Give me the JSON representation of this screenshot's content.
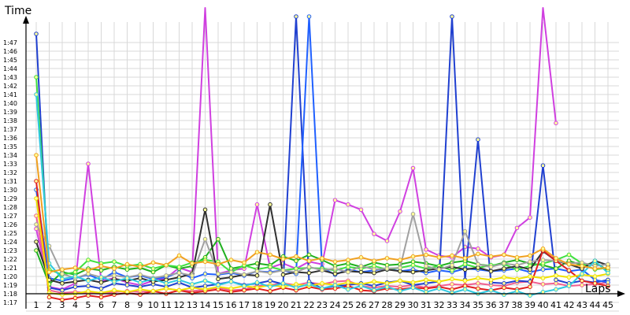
{
  "chart_data": {
    "type": "line",
    "ylabel": "Time",
    "xlabel": "Laps",
    "grid": true,
    "legend": "none",
    "ylim_seconds": [
      76,
      108
    ],
    "y_ticks": [
      "1:17",
      "1:18",
      "1:19",
      "1:20",
      "1:21",
      "1:22",
      "1:23",
      "1:24",
      "1:25",
      "1:26",
      "1:27",
      "1:28",
      "1:29",
      "1:30",
      "1:31",
      "1:32",
      "1:33",
      "1:34",
      "1:35",
      "1:36",
      "1:37",
      "1:38",
      "1:39",
      "1:40",
      "1:41",
      "1:42",
      "1:43",
      "1:44",
      "1:45",
      "1:46",
      "1:47"
    ],
    "x_ticks": [
      "1",
      "2",
      "3",
      "4",
      "5",
      "6",
      "7",
      "8",
      "9",
      "10",
      "11",
      "12",
      "13",
      "14",
      "15",
      "16",
      "17",
      "18",
      "19",
      "20",
      "21",
      "22",
      "23",
      "24",
      "25",
      "26",
      "27",
      "28",
      "29",
      "30",
      "31",
      "32",
      "33",
      "34",
      "35",
      "36",
      "37",
      "38",
      "39",
      "40",
      "41",
      "42",
      "43",
      "44",
      "45"
    ],
    "series": [
      {
        "color": "#d040e0",
        "values": [
          85.5,
          78.8,
          78.5,
          79.2,
          93,
          79.5,
          79.8,
          79.3,
          79,
          79.5,
          79.8,
          81,
          80.5,
          120,
          80.3,
          80.7,
          80.9,
          88.3,
          81,
          81.5,
          80.9,
          81.7,
          81.4,
          88.8,
          88.3,
          87.7,
          84.9,
          84.1,
          87.5,
          92.5,
          83.1,
          82.4,
          82.2,
          83.4,
          83.2,
          82.2,
          82.5,
          85.6,
          86.8,
          120,
          97.7
        ]
      },
      {
        "color": "#f06090",
        "values": [
          87,
          78.4,
          78.1,
          78.2,
          78.1,
          78,
          78.2,
          78.3,
          78.2,
          78.3,
          78.6,
          78.4,
          78.3,
          78.5,
          78.7,
          78.4,
          78.5,
          78.9,
          79,
          79.2,
          79,
          79.3,
          79.1,
          79.4,
          79.5,
          78.9,
          78.7,
          78.9,
          78.8,
          79,
          78.7,
          78.9,
          79.1,
          79,
          79.2,
          79,
          78.9,
          79.3,
          79.4,
          79.1,
          79.2,
          78.9,
          79,
          79.1,
          79.3
        ]
      },
      {
        "color": "#2040d0",
        "values": [
          108,
          78.7,
          78.4,
          78.8,
          78.9,
          78.6,
          79.2,
          79,
          78.8,
          79.1,
          78.8,
          79.3,
          78.7,
          78.9,
          79.1,
          79.4,
          79,
          79.2,
          79.5,
          79.1,
          110,
          79.4,
          78.6,
          78.9,
          79,
          79.2,
          78.9,
          79.3,
          79.5,
          79,
          79.2,
          79.4,
          110,
          79.6,
          95.8,
          79.3,
          79.2,
          79.5,
          79.4,
          92.8,
          79.6,
          79.2,
          79.5,
          79.3,
          79.6
        ]
      },
      {
        "color": "#2060ff",
        "values": [
          90,
          79.8,
          79.5,
          79.8,
          80.2,
          79.6,
          80.5,
          79.9,
          80.1,
          79.7,
          79.9,
          80.5,
          79.8,
          80.3,
          80.2,
          80.4,
          80.1,
          80.6,
          80.5,
          80.7,
          80.3,
          110,
          81,
          80.2,
          80.8,
          80.5,
          80.7,
          80.9,
          80.6,
          80.8,
          80.4,
          80.7,
          80.5,
          80.9,
          80.8,
          80.6,
          80.7,
          80.9,
          80.5,
          80.8,
          80.9,
          80.6,
          80.8,
          79.6,
          79.3
        ]
      },
      {
        "color": "#20b020",
        "values": [
          83,
          79.1,
          80.5,
          80.2,
          80.9,
          80.7,
          81.1,
          80.8,
          81,
          80.5,
          81.3,
          80.9,
          81.2,
          82.2,
          84.3,
          80.9,
          81.2,
          81.5,
          81.3,
          82.3,
          81.8,
          82.5,
          81.9,
          81.2,
          81.5,
          81.1,
          81.6,
          81.3,
          81.4,
          81.7,
          81.5,
          81.2,
          81.6,
          81.8,
          81.4,
          81.2,
          81.6,
          81.9,
          81.5,
          81.3,
          80.9,
          81.8,
          81.3,
          81.6,
          80.7
        ]
      },
      {
        "color": "#40e040",
        "values": [
          103,
          80.8,
          80.2,
          80.5,
          81.9,
          81.5,
          81.7,
          81.2,
          81.4,
          80.9,
          81.3,
          81.1,
          81.6,
          81.9,
          81.7,
          80.5,
          81.3,
          80.8,
          81.1,
          80.7,
          80.9,
          81,
          80.9,
          80.7,
          81.1,
          80.9,
          81.2,
          80.8,
          81,
          81.3,
          80.9,
          81.2,
          80.7,
          81.4,
          81,
          81.3,
          81.4,
          80.8,
          81.2,
          81.5,
          81.9,
          82.5,
          81.5,
          80.8,
          81
        ]
      },
      {
        "color": "#303030",
        "values": [
          84,
          79.6,
          79.2,
          79.4,
          79.6,
          79.3,
          79.7,
          79.5,
          79.8,
          79.4,
          79.6,
          79.9,
          80.3,
          87.7,
          79.7,
          79.9,
          80.2,
          80.1,
          88.3,
          80.2,
          80.5,
          80.4,
          80.7,
          80.3,
          80.6,
          80.5,
          80.4,
          80.8,
          80.6,
          80.5,
          80.7,
          80.9,
          81.1,
          80.8,
          81,
          80.6,
          80.9,
          81.2,
          80.8,
          82.9,
          81.8,
          81.4,
          80.9,
          81.8,
          81.3
        ]
      },
      {
        "color": "#a0a0a0",
        "values": [
          86,
          83.5,
          80.3,
          79.8,
          80.3,
          79.9,
          80.1,
          79.9,
          80.2,
          79.8,
          80.1,
          80.4,
          80.1,
          84.3,
          80.3,
          80.5,
          80.2,
          80.6,
          80.4,
          80.7,
          80.5,
          81.1,
          80.7,
          80.9,
          80.5,
          81.2,
          80.8,
          80.9,
          81,
          87.2,
          81.2,
          80.8,
          81.3,
          85.2,
          81.4,
          81.1,
          81.5,
          81.3,
          81.7,
          81.9,
          81.8,
          81.5,
          81.6,
          81.2,
          81.4
        ]
      },
      {
        "color": "#e02020",
        "values": [
          91,
          77.6,
          77.3,
          77.5,
          77.8,
          77.6,
          77.9,
          78.1,
          77.9,
          78.3,
          78,
          78.4,
          78.1,
          78.3,
          78.5,
          78.2,
          78.4,
          78.6,
          78.3,
          78.7,
          78.4,
          78.8,
          78.5,
          78.6,
          78.9,
          78.4,
          78.3,
          78.6,
          78.5,
          78.7,
          78.6,
          78.8,
          78.5,
          78.9,
          78.6,
          78.4,
          78.7,
          78.5,
          78.8,
          83,
          81.8,
          80.7,
          79.5,
          79.2,
          78.9
        ]
      },
      {
        "color": "#f0e000",
        "values": [
          89,
          78.1,
          77.9,
          78,
          78.3,
          78.1,
          78.4,
          78.2,
          78.5,
          78.3,
          78.6,
          78.4,
          78.7,
          78.5,
          78.8,
          78.6,
          78.9,
          78.7,
          79,
          78.8,
          79.1,
          78.9,
          79.2,
          79,
          79.3,
          79.1,
          79.4,
          79.2,
          79.5,
          79.3,
          79.6,
          79.4,
          79.7,
          79.5,
          79.8,
          79.6,
          79.9,
          79.7,
          80,
          79.8,
          80.1,
          79.9,
          80.2,
          80,
          80.3
        ]
      },
      {
        "color": "#30c8e0",
        "values": [
          101,
          81.5,
          79.7,
          80,
          79.5,
          79.9,
          79.4,
          79.8,
          79.3,
          79.7,
          79.2,
          79.6,
          79.1,
          79.5,
          79,
          79.4,
          78.9,
          79.3,
          78.8,
          79.2,
          78.7,
          79.1,
          78.6,
          79,
          78.5,
          78.9,
          78.4,
          78.8,
          78.3,
          78.7,
          78.2,
          78.6,
          78.1,
          78.5,
          78,
          78.4,
          77.9,
          78.3,
          77.8,
          78.2,
          78.5,
          78.9,
          80.3,
          81.8,
          80.4
        ]
      },
      {
        "color": "#f0a020",
        "values": [
          94,
          80.5,
          80.8,
          81,
          80.7,
          81.2,
          80.9,
          81.4,
          81.1,
          81.6,
          81.3,
          82.4,
          81.5,
          81.7,
          81.4,
          81.9,
          81.6,
          82.8,
          82.5,
          82,
          82.3,
          81.8,
          82.1,
          81.7,
          81.9,
          82.2,
          81.8,
          82.1,
          81.9,
          82.3,
          82.5,
          82.2,
          82.4,
          82.1,
          82.6,
          82.3,
          82.5,
          82.2,
          82.4,
          83.2,
          82.1,
          81.4,
          81.2,
          80.9,
          81
        ]
      }
    ]
  }
}
